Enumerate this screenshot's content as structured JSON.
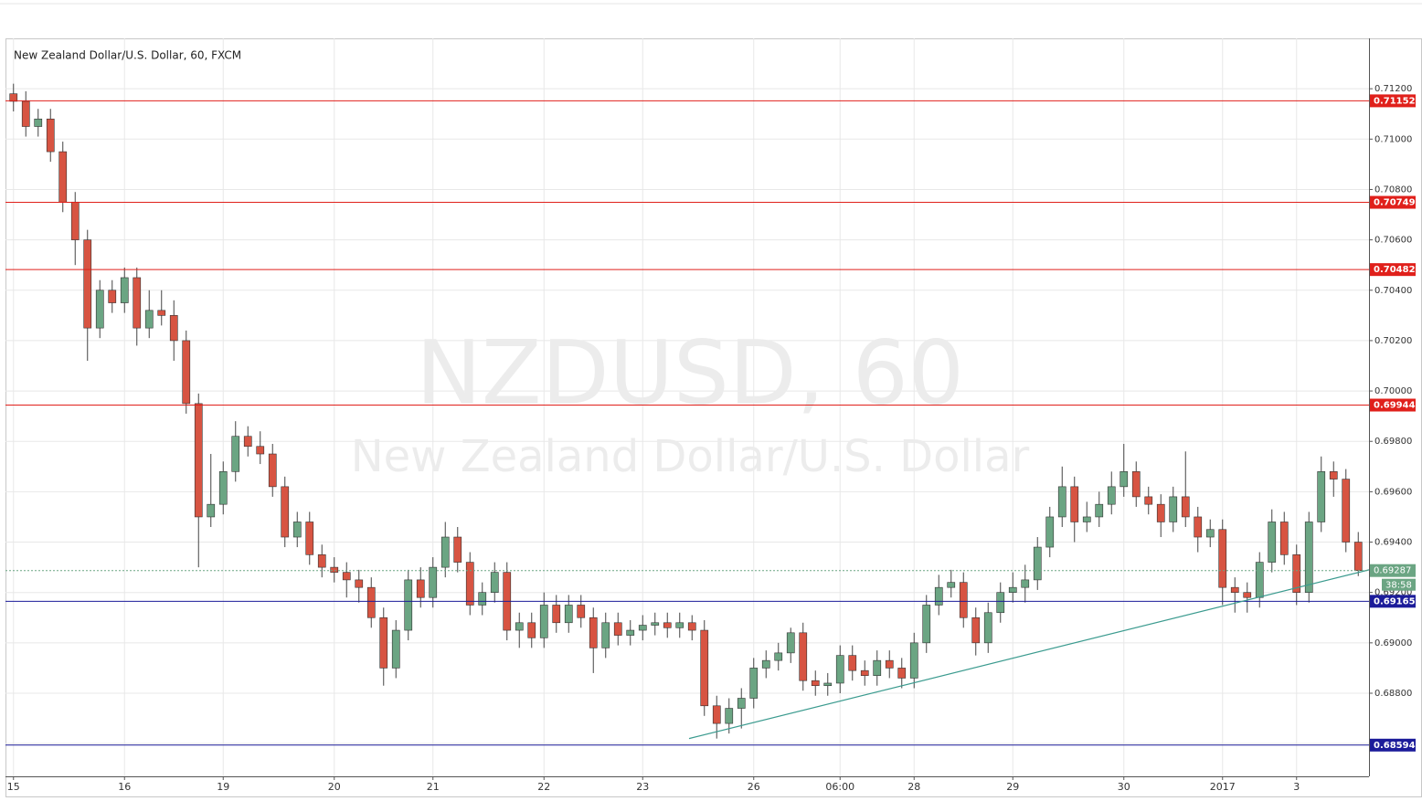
{
  "chart_data": {
    "type": "candlestick",
    "title": "New Zealand Dollar/U.S. Dollar, 60, FXCM",
    "watermark": "NZDUSD, 60",
    "watermark_subtitle": "New Zealand Dollar/U.S. Dollar",
    "categories": [
      "15",
      null,
      null,
      null,
      null,
      null,
      null,
      null,
      null,
      "16",
      null,
      null,
      null,
      null,
      null,
      null,
      null,
      "19",
      null,
      null,
      null,
      null,
      null,
      null,
      null,
      null,
      "20",
      null,
      null,
      null,
      null,
      null,
      null,
      null,
      "21",
      null,
      null,
      null,
      null,
      null,
      null,
      null,
      null,
      "22",
      null,
      null,
      null,
      null,
      null,
      null,
      null,
      "23",
      null,
      null,
      null,
      null,
      null,
      null,
      null,
      null,
      "26",
      null,
      null,
      null,
      null,
      null,
      null,
      "06:00",
      null,
      null,
      null,
      null,
      null,
      "28",
      null,
      null,
      null,
      null,
      null,
      null,
      null,
      "29",
      null,
      null,
      null,
      null,
      null,
      null,
      null,
      null,
      "30",
      null,
      null,
      null,
      null,
      null,
      null,
      null,
      "2017",
      null,
      null,
      null,
      null,
      null,
      "3",
      null,
      null,
      null,
      null,
      null
    ],
    "open": [
      0.7118,
      0.7115,
      0.7105,
      0.7108,
      0.7095,
      0.7075,
      0.706,
      0.7025,
      0.704,
      0.7035,
      0.7045,
      0.7025,
      0.7032,
      0.703,
      0.702,
      0.6995,
      0.695,
      0.6955,
      0.6968,
      0.6982,
      0.6978,
      0.6975,
      0.6962,
      0.6942,
      0.6948,
      0.6935,
      0.693,
      0.6928,
      0.6925,
      0.6922,
      0.691,
      0.689,
      0.6905,
      0.6925,
      0.6918,
      0.693,
      0.6942,
      0.6932,
      0.6915,
      0.692,
      0.6928,
      0.6905,
      0.6908,
      0.6902,
      0.6915,
      0.6908,
      0.6915,
      0.691,
      0.6898,
      0.6908,
      0.6903,
      0.6905,
      0.6907,
      0.6908,
      0.6906,
      0.6908,
      0.6905,
      0.6875,
      0.6868,
      0.6874,
      0.6878,
      0.689,
      0.6893,
      0.6896,
      0.6904,
      0.6885,
      0.6883,
      0.6884,
      0.6895,
      0.6889,
      0.6887,
      0.6893,
      0.689,
      0.6886,
      0.69,
      0.6915,
      0.6922,
      0.6924,
      0.691,
      0.69,
      0.6912,
      0.692,
      0.6922,
      0.6925,
      0.6938,
      0.695,
      0.6962,
      0.6948,
      0.695,
      0.6955,
      0.6962,
      0.6968,
      0.6958,
      0.6955,
      0.6948,
      0.6958,
      0.695,
      0.6942,
      0.6945,
      0.6922,
      0.692,
      0.6918,
      0.6932,
      0.6948,
      0.6935,
      0.692,
      0.6948,
      0.6968,
      0.6965,
      0.694
    ],
    "high": [
      0.7122,
      0.7119,
      0.7112,
      0.7112,
      0.7099,
      0.7079,
      0.7064,
      0.7044,
      0.7044,
      0.7049,
      0.7049,
      0.704,
      0.704,
      0.7036,
      0.7024,
      0.6999,
      0.6975,
      0.6972,
      0.6988,
      0.6986,
      0.6984,
      0.6979,
      0.6966,
      0.6952,
      0.6952,
      0.6939,
      0.6934,
      0.6932,
      0.6929,
      0.6926,
      0.6914,
      0.6909,
      0.6929,
      0.693,
      0.6934,
      0.6948,
      0.6946,
      0.6936,
      0.6924,
      0.6932,
      0.6932,
      0.6912,
      0.6912,
      0.692,
      0.6919,
      0.6919,
      0.6919,
      0.6914,
      0.6912,
      0.6912,
      0.6909,
      0.6911,
      0.6912,
      0.6912,
      0.6912,
      0.6911,
      0.6909,
      0.6879,
      0.6878,
      0.6882,
      0.6894,
      0.6897,
      0.69,
      0.6906,
      0.6908,
      0.6889,
      0.6888,
      0.6899,
      0.6899,
      0.6893,
      0.6897,
      0.6897,
      0.6894,
      0.6904,
      0.6919,
      0.6927,
      0.6929,
      0.6928,
      0.6914,
      0.6916,
      0.6924,
      0.6928,
      0.6931,
      0.6942,
      0.6954,
      0.697,
      0.6966,
      0.6956,
      0.696,
      0.6968,
      0.6979,
      0.6972,
      0.6962,
      0.6959,
      0.6962,
      0.6976,
      0.6954,
      0.6949,
      0.6949,
      0.6926,
      0.6924,
      0.6936,
      0.6953,
      0.6952,
      0.6939,
      0.6952,
      0.6974,
      0.6972,
      0.6969,
      0.6944
    ],
    "low": [
      0.7111,
      0.7101,
      0.7101,
      0.7091,
      0.7071,
      0.705,
      0.7012,
      0.7021,
      0.7031,
      0.7031,
      0.7018,
      0.7021,
      0.7026,
      0.7012,
      0.6991,
      0.693,
      0.6946,
      0.6951,
      0.6964,
      0.6974,
      0.6971,
      0.6958,
      0.6938,
      0.6938,
      0.6931,
      0.6926,
      0.6924,
      0.6918,
      0.6916,
      0.6906,
      0.6883,
      0.6886,
      0.6901,
      0.6914,
      0.6914,
      0.6926,
      0.6928,
      0.6911,
      0.6911,
      0.6916,
      0.6901,
      0.6898,
      0.6898,
      0.6898,
      0.6904,
      0.6904,
      0.6906,
      0.6888,
      0.6894,
      0.6899,
      0.6899,
      0.6901,
      0.6903,
      0.6902,
      0.6902,
      0.6901,
      0.6871,
      0.6862,
      0.6864,
      0.6866,
      0.6874,
      0.6886,
      0.6889,
      0.6892,
      0.6881,
      0.6879,
      0.6879,
      0.688,
      0.6885,
      0.6883,
      0.6883,
      0.6886,
      0.6882,
      0.6882,
      0.6896,
      0.6911,
      0.6918,
      0.6906,
      0.6895,
      0.6896,
      0.6908,
      0.6916,
      0.6916,
      0.6921,
      0.6934,
      0.6946,
      0.694,
      0.6944,
      0.6946,
      0.6951,
      0.6958,
      0.6954,
      0.6951,
      0.6942,
      0.6944,
      0.6946,
      0.6936,
      0.6938,
      0.6915,
      0.6912,
      0.6912,
      0.6914,
      0.6928,
      0.6931,
      0.6915,
      0.6916,
      0.6944,
      0.6958,
      0.6936,
      0.69265
    ],
    "close": [
      0.7115,
      0.7105,
      0.7108,
      0.7095,
      0.7075,
      0.706,
      0.7025,
      0.704,
      0.7035,
      0.7045,
      0.7025,
      0.7032,
      0.703,
      0.702,
      0.6995,
      0.695,
      0.6955,
      0.6968,
      0.6982,
      0.6978,
      0.6975,
      0.6962,
      0.6942,
      0.6948,
      0.6935,
      0.693,
      0.6928,
      0.6925,
      0.6922,
      0.691,
      0.689,
      0.6905,
      0.6925,
      0.6918,
      0.693,
      0.6942,
      0.6932,
      0.6915,
      0.692,
      0.6928,
      0.6905,
      0.6908,
      0.6902,
      0.6915,
      0.6908,
      0.6915,
      0.691,
      0.6898,
      0.6908,
      0.6903,
      0.6905,
      0.6907,
      0.6908,
      0.6906,
      0.6908,
      0.6905,
      0.6875,
      0.6868,
      0.6874,
      0.6878,
      0.689,
      0.6893,
      0.6896,
      0.6904,
      0.6885,
      0.6883,
      0.6884,
      0.6895,
      0.6889,
      0.6887,
      0.6893,
      0.689,
      0.6886,
      0.69,
      0.6915,
      0.6922,
      0.6924,
      0.691,
      0.69,
      0.6912,
      0.692,
      0.6922,
      0.6925,
      0.6938,
      0.695,
      0.6962,
      0.6948,
      0.695,
      0.6955,
      0.6962,
      0.6968,
      0.6958,
      0.6955,
      0.6948,
      0.6958,
      0.695,
      0.6942,
      0.6945,
      0.6922,
      0.692,
      0.6918,
      0.6932,
      0.6948,
      0.6935,
      0.692,
      0.6948,
      0.6968,
      0.6965,
      0.694,
      0.69287
    ],
    "up_color": "#6ba583",
    "down_color": "#d75442",
    "ylim": [
      0.6847,
      0.714
    ],
    "yticks": [
      {
        "value": 0.686,
        "label": "0.68600"
      },
      {
        "value": 0.688,
        "label": "0.68800"
      },
      {
        "value": 0.69,
        "label": "0.69000"
      },
      {
        "value": 0.692,
        "label": "0.69200"
      },
      {
        "value": 0.694,
        "label": "0.69400"
      },
      {
        "value": 0.696,
        "label": "0.69600"
      },
      {
        "value": 0.698,
        "label": "0.69800"
      },
      {
        "value": 0.7,
        "label": "0.70000"
      },
      {
        "value": 0.702,
        "label": "0.70200"
      },
      {
        "value": 0.704,
        "label": "0.70400"
      },
      {
        "value": 0.706,
        "label": "0.70600"
      },
      {
        "value": 0.708,
        "label": "0.70800"
      },
      {
        "value": 0.71,
        "label": "0.71000"
      },
      {
        "value": 0.712,
        "label": "0.71200"
      }
    ],
    "grid": true,
    "levels": [
      {
        "value": 0.71152,
        "color": "#e0201b"
      },
      {
        "value": 0.70749,
        "color": "#e0201b"
      },
      {
        "value": 0.70482,
        "color": "#e0201b"
      },
      {
        "value": 0.69944,
        "color": "#e0201b"
      },
      {
        "value": 0.69165,
        "color": "#1c1c9a"
      },
      {
        "value": 0.68594,
        "color": "#1c1c9a"
      }
    ],
    "last_price": {
      "value": 0.69287,
      "color": "#6ba583",
      "countdown": "38:58"
    },
    "trendline": {
      "start": 0.6862,
      "end": 0.6929,
      "color": "#3b9b8f"
    }
  }
}
